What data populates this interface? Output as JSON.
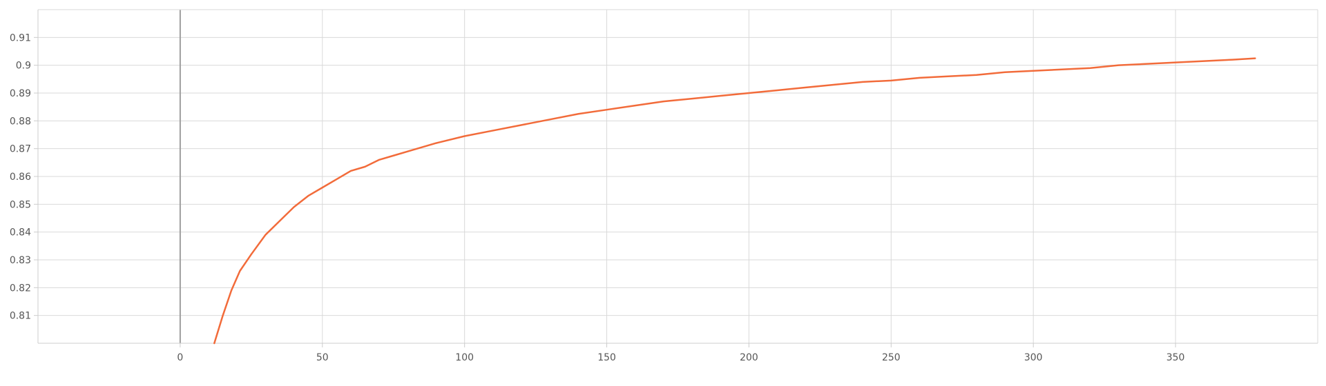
{
  "chart_data": {
    "type": "line",
    "title": "",
    "xlabel": "",
    "ylabel": "",
    "xlim": [
      -50,
      400
    ],
    "ylim": [
      0.8,
      0.92
    ],
    "x_ticks": [
      0,
      50,
      100,
      150,
      200,
      250,
      300,
      350
    ],
    "y_ticks": [
      0.81,
      0.82,
      0.83,
      0.84,
      0.85,
      0.86,
      0.87,
      0.88,
      0.89,
      0.9,
      0.91
    ],
    "x_tick_labels": [
      "0",
      "50",
      "100",
      "150",
      "200",
      "250",
      "300",
      "350"
    ],
    "y_tick_labels": [
      "0.81",
      "0.82",
      "0.83",
      "0.84",
      "0.85",
      "0.86",
      "0.87",
      "0.88",
      "0.89",
      "0.9",
      "0.91"
    ],
    "grid": true,
    "legend": "none",
    "series": [
      {
        "color": "#f26b3a",
        "x": [
          12,
          15,
          18,
          21,
          25,
          30,
          35,
          40,
          45,
          50,
          55,
          60,
          65,
          70,
          75,
          80,
          90,
          100,
          110,
          120,
          130,
          140,
          150,
          160,
          170,
          180,
          190,
          200,
          210,
          220,
          230,
          240,
          250,
          260,
          270,
          280,
          290,
          300,
          310,
          320,
          330,
          340,
          350,
          360,
          370,
          378
        ],
        "y": [
          0.8,
          0.81,
          0.819,
          0.826,
          0.832,
          0.839,
          0.844,
          0.849,
          0.853,
          0.856,
          0.859,
          0.862,
          0.8635,
          0.866,
          0.8675,
          0.869,
          0.872,
          0.8745,
          0.8765,
          0.8785,
          0.8805,
          0.8825,
          0.884,
          0.8855,
          0.887,
          0.888,
          0.889,
          0.89,
          0.891,
          0.892,
          0.893,
          0.894,
          0.8945,
          0.8955,
          0.896,
          0.8965,
          0.8975,
          0.898,
          0.8985,
          0.899,
          0.9,
          0.9005,
          0.901,
          0.9015,
          0.902,
          0.9025
        ]
      }
    ]
  }
}
